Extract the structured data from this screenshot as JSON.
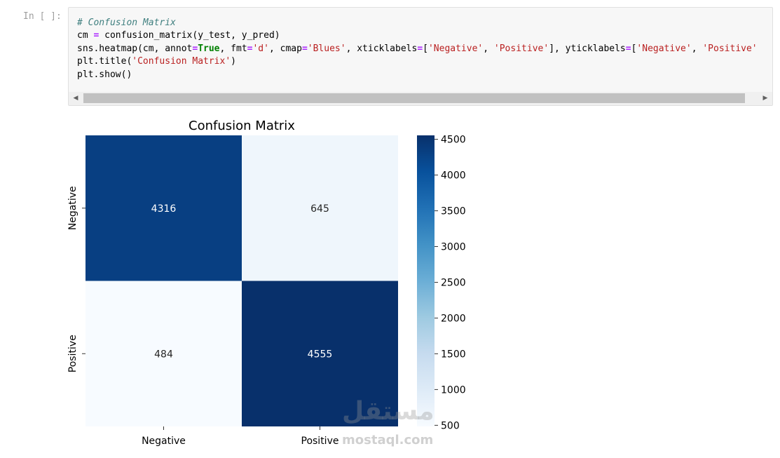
{
  "notebook": {
    "prompt": "In [ ]:",
    "code_lines": [
      "# Confusion Matrix",
      "cm = confusion_matrix(y_test, y_pred)",
      "sns.heatmap(cm, annot=True, fmt='d', cmap='Blues', xticklabels=['Negative', 'Positive'], yticklabels=['Negative', 'Positive'",
      "plt.title('Confusion Matrix')",
      "plt.show()"
    ],
    "scroll_left_icon": "triangle-left-icon",
    "scroll_right_icon": "triangle-right-icon"
  },
  "chart_data": {
    "type": "heatmap",
    "title": "Confusion Matrix",
    "x_categories": [
      "Negative",
      "Positive"
    ],
    "y_categories": [
      "Negative",
      "Positive"
    ],
    "values": [
      [
        4316,
        645
      ],
      [
        484,
        4555
      ]
    ],
    "colormap": "Blues",
    "colorbar": {
      "ticks": [
        "500",
        "1000",
        "1500",
        "2000",
        "2500",
        "3000",
        "3500",
        "4000",
        "4500"
      ],
      "range": [
        484,
        4555
      ]
    }
  },
  "watermark": {
    "arabic": "مستقل",
    "latin": "mostaql.com"
  }
}
